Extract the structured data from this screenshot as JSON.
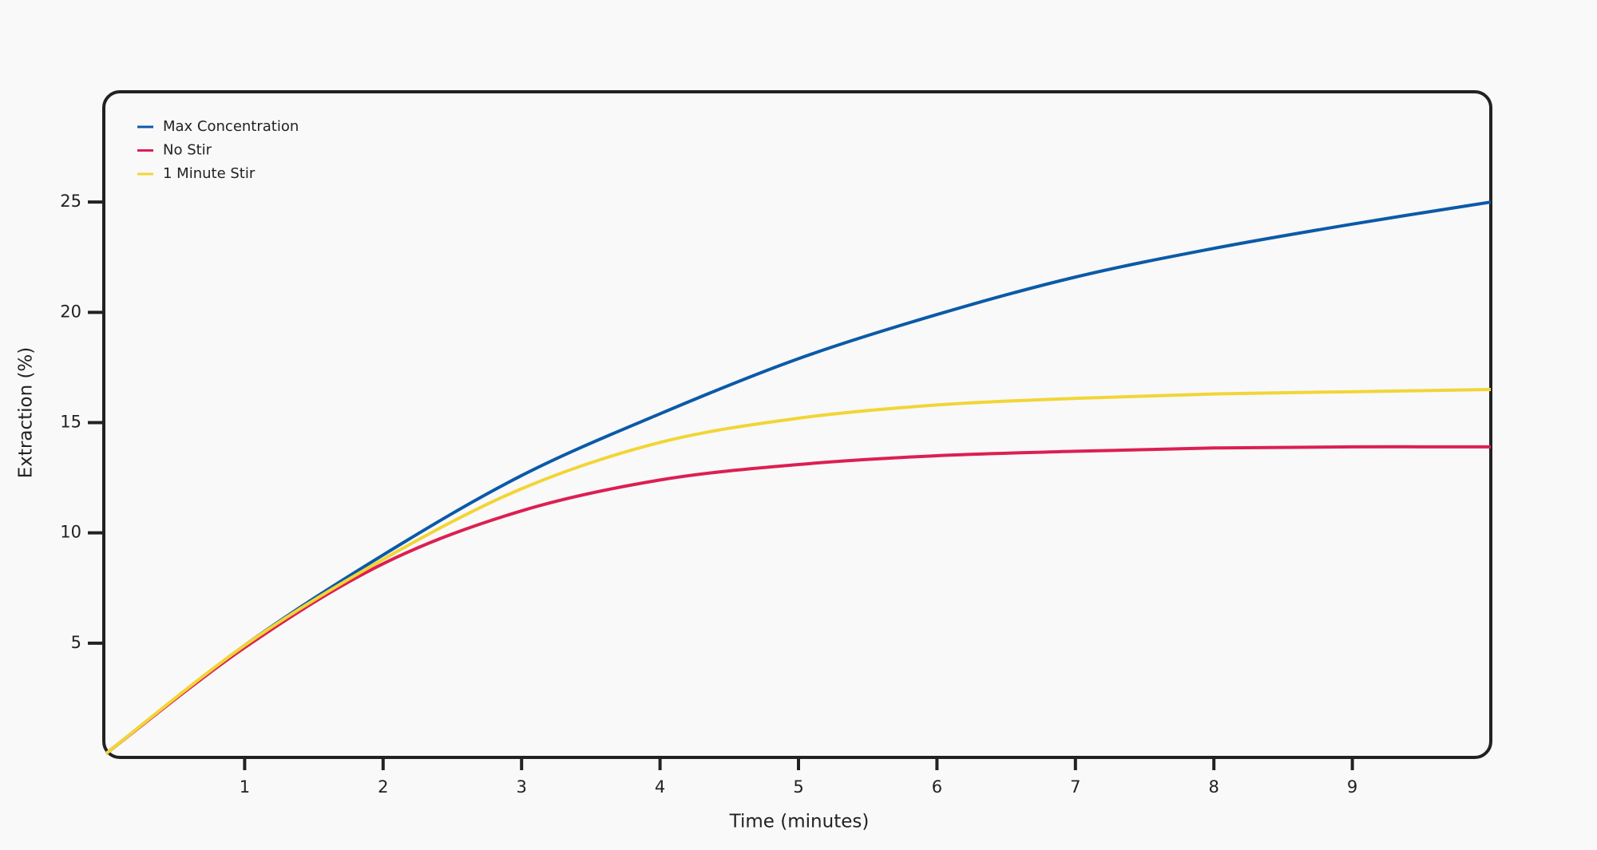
{
  "chart_data": {
    "type": "line",
    "x_label": "Time (minutes)",
    "y_label": "Extraction (%)",
    "x": [
      0,
      1,
      2,
      3,
      4,
      5,
      6,
      7,
      8,
      9,
      10
    ],
    "series": [
      {
        "name": "Max Concentration",
        "color": "#0b5aa8",
        "values": [
          0,
          4.9,
          9.0,
          12.6,
          15.4,
          17.9,
          19.9,
          21.6,
          22.9,
          24.0,
          25.0
        ]
      },
      {
        "name": "No Stir",
        "color": "#dc1f52",
        "values": [
          0,
          4.8,
          8.6,
          11.0,
          12.4,
          13.1,
          13.5,
          13.7,
          13.85,
          13.9,
          13.9
        ]
      },
      {
        "name": "1 Minute Stir",
        "color": "#f2d536",
        "values": [
          0,
          4.9,
          8.8,
          12.0,
          14.1,
          15.2,
          15.8,
          16.1,
          16.3,
          16.4,
          16.5
        ]
      }
    ],
    "xlim": [
      0,
      10
    ],
    "ylim": [
      0,
      30
    ],
    "xticks": [
      1,
      2,
      3,
      4,
      5,
      6,
      7,
      8,
      9
    ],
    "yticks": [
      5,
      10,
      15,
      20,
      25
    ],
    "legend": "upper left"
  }
}
